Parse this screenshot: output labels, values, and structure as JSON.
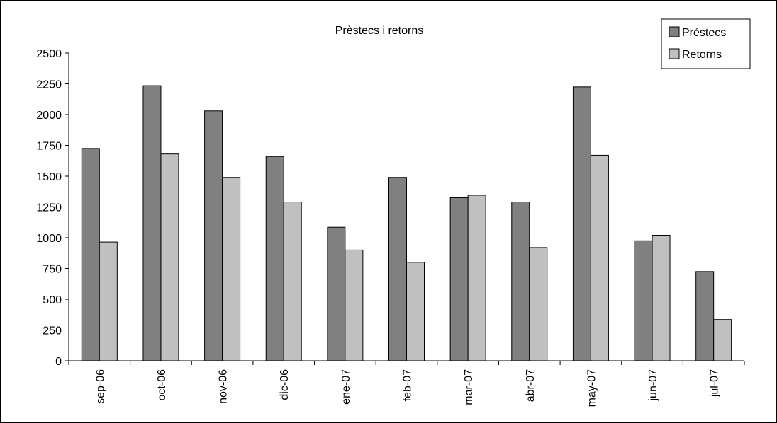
{
  "chart_data": {
    "type": "bar",
    "title": "Prèstecs i retorns",
    "xlabel": "",
    "ylabel": "",
    "categories": [
      "sep-06",
      "oct-06",
      "nov-06",
      "dic-06",
      "ene-07",
      "feb-07",
      "mar-07",
      "abr-07",
      "may-07",
      "jun-07",
      "jul-07"
    ],
    "series": [
      {
        "name": "Préstecs",
        "color": "#808080",
        "values": [
          1725,
          2235,
          2030,
          1660,
          1085,
          1490,
          1325,
          1290,
          2225,
          975,
          725
        ]
      },
      {
        "name": "Retorns",
        "color": "#c0c0c0",
        "values": [
          965,
          1680,
          1490,
          1290,
          900,
          800,
          1345,
          920,
          1670,
          1020,
          335
        ]
      }
    ],
    "ylim": [
      0,
      2500
    ],
    "yticks": [
      "0",
      "250",
      "500",
      "750",
      "1000",
      "1250",
      "1500",
      "1750",
      "2000",
      "2250",
      "2500"
    ],
    "grid": false,
    "legend": "top-right"
  }
}
